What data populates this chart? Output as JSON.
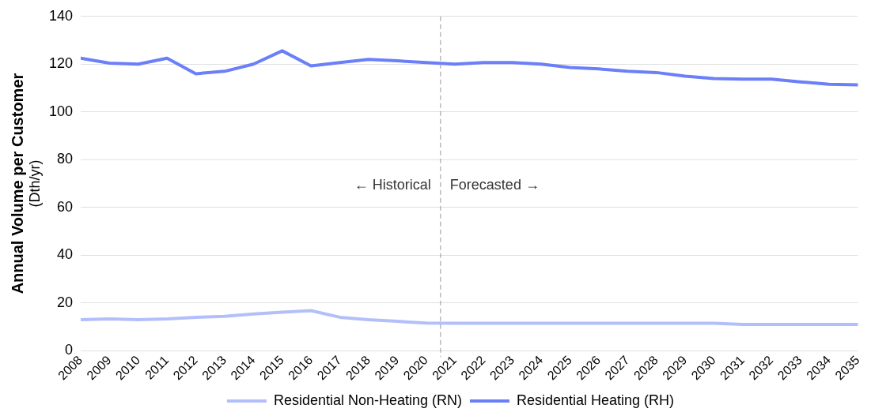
{
  "chart_data": {
    "type": "line",
    "ylabel": "Annual Volume per Customer\n(Dth/yr)",
    "x": [
      2008,
      2009,
      2010,
      2011,
      2012,
      2013,
      2014,
      2015,
      2016,
      2017,
      2018,
      2019,
      2020,
      2021,
      2022,
      2023,
      2024,
      2025,
      2026,
      2027,
      2028,
      2029,
      2030,
      2031,
      2032,
      2033,
      2034,
      2035
    ],
    "xlim": [
      2008,
      2035
    ],
    "xticks": [
      2008,
      2009,
      2010,
      2011,
      2012,
      2013,
      2014,
      2015,
      2016,
      2017,
      2018,
      2019,
      2020,
      2021,
      2022,
      2023,
      2024,
      2025,
      2026,
      2027,
      2028,
      2029,
      2030,
      2031,
      2032,
      2033,
      2034,
      2035
    ],
    "ylim": [
      0,
      140
    ],
    "yticks": [
      0,
      20,
      40,
      60,
      80,
      100,
      120,
      140
    ],
    "grid": "y",
    "legend": "bottom",
    "marker": "none",
    "line_style": "solid",
    "series": [
      {
        "name": "Residential Non-Heating (RN)",
        "color": "#b3bffb",
        "values": [
          13,
          13.3,
          13,
          13.3,
          14,
          14.4,
          15.4,
          16.1,
          16.8,
          14,
          13,
          12.3,
          11.6,
          11.5,
          11.5,
          11.5,
          11.5,
          11.5,
          11.5,
          11.5,
          11.5,
          11.5,
          11.5,
          11,
          11,
          11,
          11,
          11
        ]
      },
      {
        "name": "Residential Heating (RH)",
        "color": "#6b7ff7",
        "values": [
          122.5,
          120.4,
          120,
          122.5,
          116,
          117,
          120,
          125.6,
          119.3,
          120.7,
          122,
          121.4,
          120.7,
          120,
          120.7,
          120.7,
          120,
          118.6,
          118,
          117,
          116.5,
          115,
          114,
          113.7,
          113.7,
          112.6,
          111.6,
          111.3
        ]
      }
    ],
    "ref_lines": [
      {
        "axis": "x",
        "value": 2020.5,
        "color": "#999999",
        "line_style": "dashed"
      }
    ],
    "annotations": [
      "← Historical",
      "Forecasted →"
    ]
  }
}
